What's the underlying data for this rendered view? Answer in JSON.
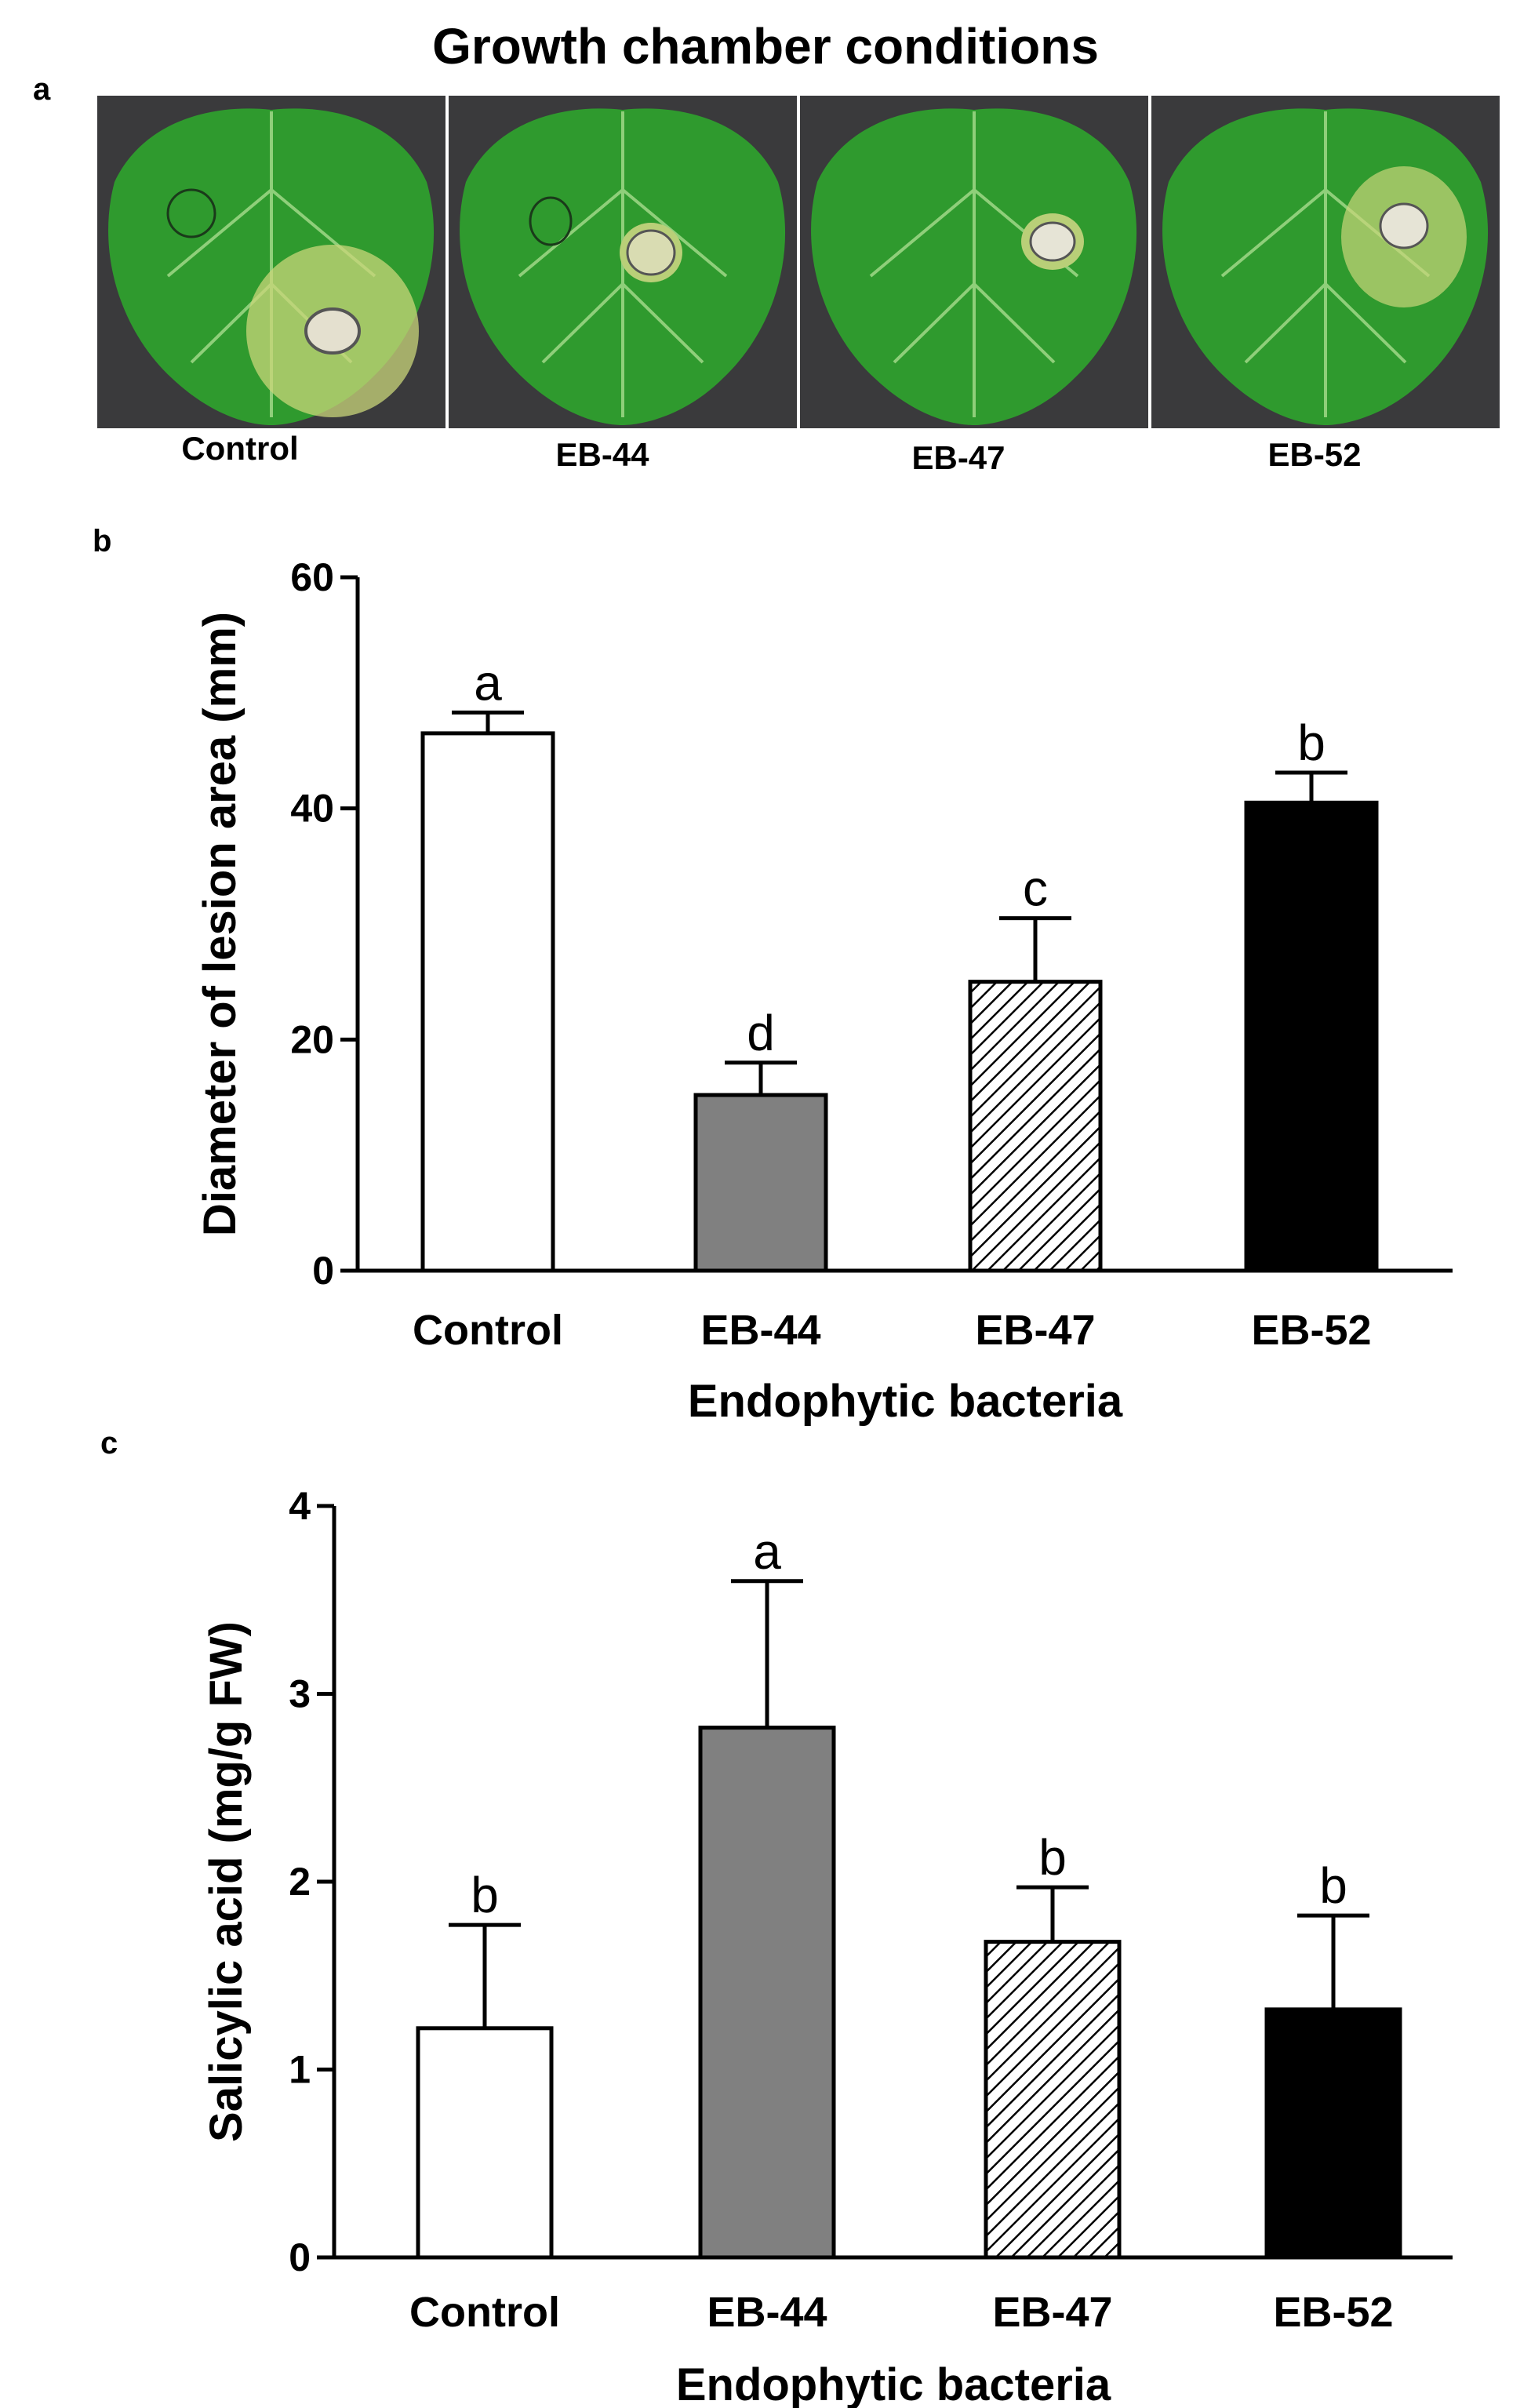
{
  "figure": {
    "panel_a_letter": "a",
    "panel_b_letter": "b",
    "panel_c_letter": "c",
    "panel_a_title": "Growth chamber conditions",
    "photos": [
      {
        "label": "Control",
        "icon": "leaf-photo-icon"
      },
      {
        "label": "EB-44",
        "icon": "leaf-photo-icon"
      },
      {
        "label": "EB-47",
        "icon": "leaf-photo-icon"
      },
      {
        "label": "EB-52",
        "icon": "leaf-photo-icon"
      }
    ]
  },
  "colors": {
    "control": "#ffffff",
    "eb44": "#808080",
    "eb47_hatch": "#000000",
    "eb52": "#000000",
    "leaf_green": "#2f9a2e",
    "photo_background": "#3a3a3c"
  },
  "chart_data": [
    {
      "type": "bar",
      "title": "",
      "categories": [
        "Control",
        "EB-44",
        "EB-47",
        "EB-52"
      ],
      "values": [
        46.5,
        15.2,
        25.0,
        40.5
      ],
      "error": [
        1.8,
        2.8,
        5.5,
        2.6
      ],
      "significance": [
        "a",
        "d",
        "c",
        "b"
      ],
      "xlabel": "Endophytic bacteria",
      "ylabel": "Diameter of lesion area (mm)",
      "ylim": [
        0,
        60
      ],
      "yticks": [
        0,
        20,
        40,
        60
      ],
      "grid": false
    },
    {
      "type": "bar",
      "title": "",
      "categories": [
        "Control",
        "EB-44",
        "EB-47",
        "EB-52"
      ],
      "values": [
        1.22,
        2.82,
        1.68,
        1.32
      ],
      "error": [
        0.55,
        0.78,
        0.29,
        0.5
      ],
      "significance": [
        "b",
        "a",
        "b",
        "b"
      ],
      "xlabel": "Endophytic bacteria",
      "ylabel": "Salicylic acid (mg/g FW)",
      "ylim": [
        0,
        4
      ],
      "yticks": [
        0,
        1,
        2,
        3,
        4
      ],
      "grid": false
    }
  ]
}
